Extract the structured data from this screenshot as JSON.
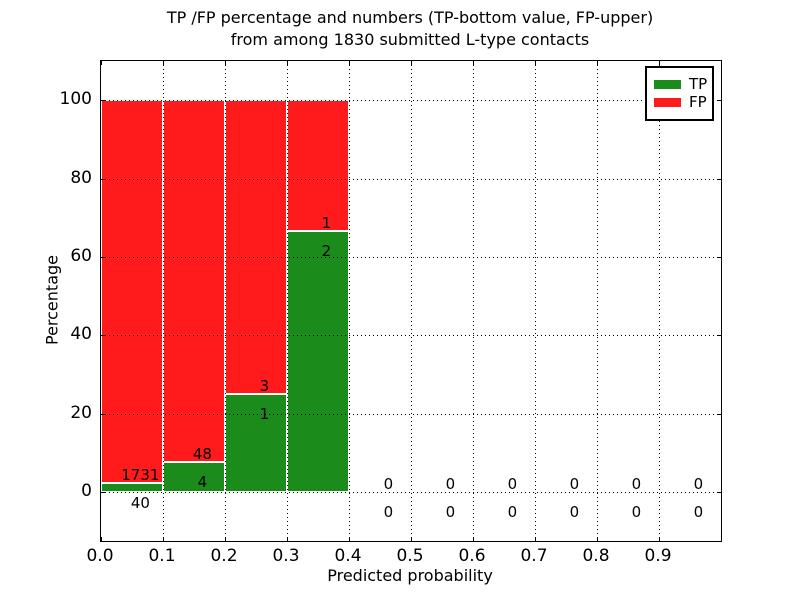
{
  "chart_data": {
    "type": "bar",
    "stacked": true,
    "title_line1": "TP /FP percentage and numbers (TP-bottom value, FP-upper)",
    "title_line2": "from among 1830 submitted L-type contacts",
    "xlabel": "Predicted probability",
    "ylabel": "Percentage",
    "xlim": [
      0.0,
      1.0
    ],
    "ylim": [
      -12.5,
      110
    ],
    "xticks": [
      "0.0",
      "0.1",
      "0.2",
      "0.3",
      "0.4",
      "0.5",
      "0.6",
      "0.7",
      "0.8",
      "0.9"
    ],
    "yticks": [
      0,
      20,
      40,
      60,
      80,
      100
    ],
    "grid": true,
    "legend_position": "upper-right",
    "colors": {
      "tp": "#1b8c1b",
      "fp": "#ff1b1b"
    },
    "legend": [
      {
        "label": "TP",
        "series": "tp"
      },
      {
        "label": "FP",
        "series": "fp"
      }
    ],
    "bins": [
      {
        "range": [
          0.0,
          0.1
        ],
        "tp_count": 40,
        "fp_count": 1731,
        "tp_pct": 2.26,
        "fp_pct": 97.74
      },
      {
        "range": [
          0.1,
          0.2
        ],
        "tp_count": 4,
        "fp_count": 48,
        "tp_pct": 7.69,
        "fp_pct": 92.31
      },
      {
        "range": [
          0.2,
          0.3
        ],
        "tp_count": 1,
        "fp_count": 3,
        "tp_pct": 25.0,
        "fp_pct": 75.0
      },
      {
        "range": [
          0.3,
          0.4
        ],
        "tp_count": 2,
        "fp_count": 1,
        "tp_pct": 66.67,
        "fp_pct": 33.33
      },
      {
        "range": [
          0.4,
          0.5
        ],
        "tp_count": 0,
        "fp_count": 0,
        "tp_pct": 0,
        "fp_pct": 0
      },
      {
        "range": [
          0.5,
          0.6
        ],
        "tp_count": 0,
        "fp_count": 0,
        "tp_pct": 0,
        "fp_pct": 0
      },
      {
        "range": [
          0.6,
          0.7
        ],
        "tp_count": 0,
        "fp_count": 0,
        "tp_pct": 0,
        "fp_pct": 0
      },
      {
        "range": [
          0.7,
          0.8
        ],
        "tp_count": 0,
        "fp_count": 0,
        "tp_pct": 0,
        "fp_pct": 0
      },
      {
        "range": [
          0.8,
          0.9
        ],
        "tp_count": 0,
        "fp_count": 0,
        "tp_pct": 0,
        "fp_pct": 0
      },
      {
        "range": [
          0.9,
          1.0
        ],
        "tp_count": 0,
        "fp_count": 0,
        "tp_pct": 0,
        "fp_pct": 0
      }
    ]
  }
}
